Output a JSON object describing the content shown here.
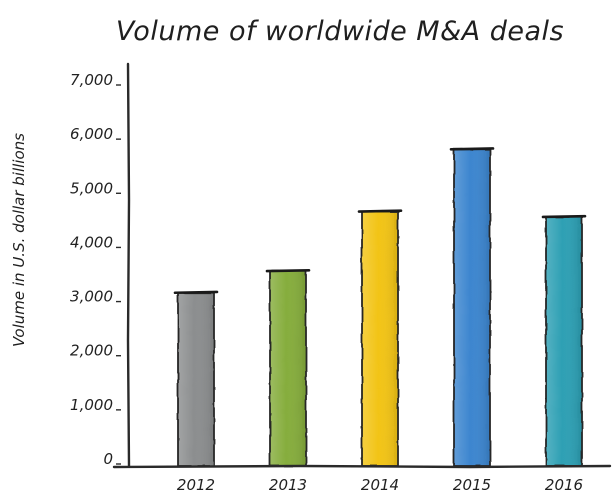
{
  "chart_data": {
    "type": "bar",
    "title": "Volume of worldwide M&A deals",
    "xlabel": "",
    "ylabel": "Volume in U.S. dollar billions",
    "categories": [
      "2012",
      "2013",
      "2014",
      "2015",
      "2016"
    ],
    "values": [
      3200,
      3600,
      4700,
      5850,
      4600
    ],
    "ylim": [
      0,
      7000
    ],
    "yticks": [
      "0",
      "1,000",
      "2,000",
      "3,000",
      "4,000",
      "5,000",
      "6,000",
      "7,000"
    ],
    "grid": false,
    "colors": [
      "#8c8e8f",
      "#86ad3e",
      "#f2c413",
      "#3d86cf",
      "#2fa0b4"
    ]
  }
}
